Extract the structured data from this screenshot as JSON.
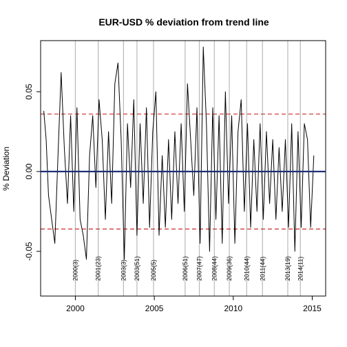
{
  "chart_data": {
    "type": "line",
    "title": "EUR-USD  % deviation from trend line",
    "xlabel": "",
    "ylabel": "% Deviation",
    "xlim": [
      1997.8,
      2015.85
    ],
    "ylim": [
      -0.078,
      0.082
    ],
    "x_ticks": [
      2000,
      2005,
      2010,
      2015
    ],
    "y_ticks": [
      -0.05,
      0.0,
      0.05
    ],
    "y_tick_labels": [
      "-0.05",
      "0.00",
      "0.05"
    ],
    "grid": false,
    "zero_line": {
      "y": 0.0,
      "color": "#1f2f7a"
    },
    "threshold_lines": {
      "values": [
        0.036,
        -0.036
      ],
      "color": "#cc2b2b",
      "style": "dashed"
    },
    "series": [
      {
        "color": "#000000",
        "x": [
          1998.0,
          1998.15,
          1998.3,
          1998.5,
          1998.7,
          1998.9,
          1999.1,
          1999.3,
          1999.5,
          1999.7,
          1999.9,
          2000.1,
          2000.3,
          2000.5,
          2000.7,
          2000.9,
          2001.1,
          2001.3,
          2001.5,
          2001.7,
          2001.9,
          2002.1,
          2002.3,
          2002.5,
          2002.7,
          2002.9,
          2003.1,
          2003.3,
          2003.5,
          2003.7,
          2003.9,
          2004.1,
          2004.3,
          2004.5,
          2004.7,
          2004.9,
          2005.1,
          2005.3,
          2005.5,
          2005.7,
          2005.9,
          2006.1,
          2006.3,
          2006.5,
          2006.7,
          2006.9,
          2007.1,
          2007.3,
          2007.5,
          2007.7,
          2007.9,
          2008.1,
          2008.3,
          2008.5,
          2008.7,
          2008.9,
          2009.1,
          2009.3,
          2009.5,
          2009.7,
          2009.9,
          2010.1,
          2010.3,
          2010.5,
          2010.7,
          2010.9,
          2011.1,
          2011.3,
          2011.5,
          2011.7,
          2011.9,
          2012.1,
          2012.3,
          2012.5,
          2012.7,
          2012.9,
          2013.1,
          2013.3,
          2013.5,
          2013.7,
          2013.9,
          2014.1,
          2014.3,
          2014.5,
          2014.7,
          2014.9,
          2015.1
        ],
        "y": [
          0.038,
          0.02,
          -0.015,
          -0.03,
          -0.045,
          0.01,
          0.062,
          0.015,
          -0.02,
          0.035,
          -0.025,
          0.04,
          -0.03,
          -0.04,
          -0.055,
          0.01,
          0.035,
          -0.01,
          0.045,
          0.02,
          -0.03,
          0.025,
          -0.02,
          0.055,
          0.068,
          0.02,
          -0.055,
          0.03,
          -0.01,
          0.045,
          -0.04,
          0.03,
          -0.02,
          0.04,
          -0.035,
          0.025,
          0.05,
          -0.04,
          0.01,
          -0.035,
          0.02,
          -0.03,
          0.025,
          -0.02,
          0.03,
          -0.025,
          0.055,
          0.02,
          -0.015,
          0.04,
          -0.045,
          0.078,
          0.03,
          -0.05,
          0.04,
          -0.03,
          0.035,
          -0.045,
          0.05,
          -0.02,
          0.035,
          -0.045,
          0.025,
          0.045,
          -0.025,
          0.03,
          -0.035,
          0.02,
          -0.025,
          0.03,
          -0.03,
          0.025,
          -0.02,
          0.02,
          -0.03,
          0.015,
          -0.025,
          0.02,
          -0.035,
          0.03,
          -0.05,
          0.025,
          -0.035,
          0.03,
          0.02,
          -0.035,
          0.01
        ]
      }
    ],
    "events": [
      {
        "x": 2000.0,
        "label": "2000(3)"
      },
      {
        "x": 2001.45,
        "label": "2001(23)"
      },
      {
        "x": 2003.05,
        "label": "2003(3)"
      },
      {
        "x": 2003.9,
        "label": "2003(51)"
      },
      {
        "x": 2004.95,
        "label": "2005(5)"
      },
      {
        "x": 2006.95,
        "label": "2006(51)"
      },
      {
        "x": 2007.85,
        "label": "2007(47)"
      },
      {
        "x": 2008.8,
        "label": "2008(44)"
      },
      {
        "x": 2009.75,
        "label": "2009(36)"
      },
      {
        "x": 2010.85,
        "label": "2010(44)"
      },
      {
        "x": 2011.85,
        "label": "2011(44)"
      },
      {
        "x": 2013.45,
        "label": "2013(19)"
      },
      {
        "x": 2014.25,
        "label": "2014(11)"
      }
    ]
  }
}
